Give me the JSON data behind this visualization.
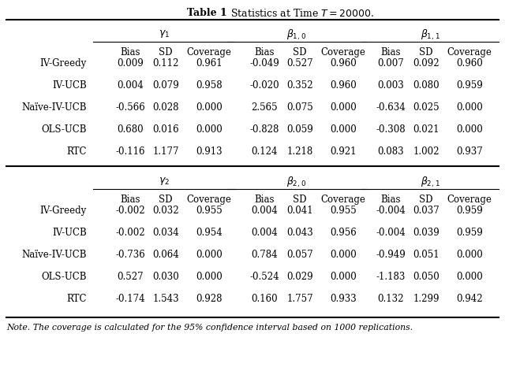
{
  "title_bold": "Table 1",
  "title_rest": "    Statistics at Time $T=20000$.",
  "note": "Note. The coverage is calculated for the 95% confidence interval based on 1000 replications.",
  "panel1": {
    "group_labels_math": [
      "$\\gamma_1$",
      "$\\beta_{1,0}$",
      "$\\beta_{1,1}$"
    ],
    "row_labels": [
      "IV-Greedy",
      "IV-UCB",
      "Naïve-IV-UCB",
      "OLS-UCB",
      "RTC"
    ],
    "data": [
      [
        "0.009",
        "0.112",
        "0.961",
        "-0.049",
        "0.527",
        "0.960",
        "0.007",
        "0.092",
        "0.960"
      ],
      [
        "0.004",
        "0.079",
        "0.958",
        "-0.020",
        "0.352",
        "0.960",
        "0.003",
        "0.080",
        "0.959"
      ],
      [
        "-0.566",
        "0.028",
        "0.000",
        "2.565",
        "0.075",
        "0.000",
        "-0.634",
        "0.025",
        "0.000"
      ],
      [
        "0.680",
        "0.016",
        "0.000",
        "-0.828",
        "0.059",
        "0.000",
        "-0.308",
        "0.021",
        "0.000"
      ],
      [
        "-0.116",
        "1.177",
        "0.913",
        "0.124",
        "1.218",
        "0.921",
        "0.083",
        "1.002",
        "0.937"
      ]
    ]
  },
  "panel2": {
    "group_labels_math": [
      "$\\gamma_2$",
      "$\\beta_{2,0}$",
      "$\\beta_{2,1}$"
    ],
    "row_labels": [
      "IV-Greedy",
      "IV-UCB",
      "Naïve-IV-UCB",
      "OLS-UCB",
      "RTC"
    ],
    "data": [
      [
        "-0.002",
        "0.032",
        "0.955",
        "0.004",
        "0.041",
        "0.955",
        "-0.004",
        "0.037",
        "0.959"
      ],
      [
        "-0.002",
        "0.034",
        "0.954",
        "0.004",
        "0.043",
        "0.956",
        "-0.004",
        "0.039",
        "0.959"
      ],
      [
        "-0.736",
        "0.064",
        "0.000",
        "0.784",
        "0.057",
        "0.000",
        "-0.949",
        "0.051",
        "0.000"
      ],
      [
        "0.527",
        "0.030",
        "0.000",
        "-0.524",
        "0.029",
        "0.000",
        "-1.183",
        "0.050",
        "0.000"
      ],
      [
        "-0.174",
        "1.543",
        "0.928",
        "0.160",
        "1.757",
        "0.933",
        "0.132",
        "1.299",
        "0.942"
      ]
    ]
  }
}
